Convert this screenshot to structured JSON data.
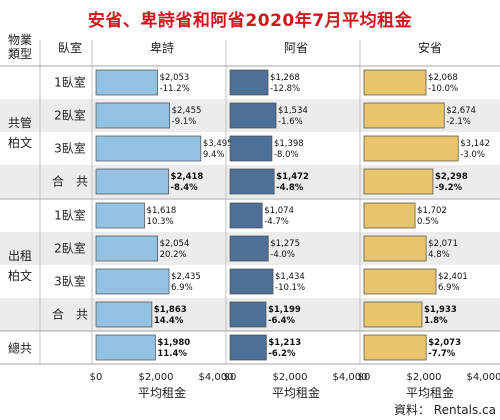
{
  "chart_data": {
    "type": "bar",
    "title": "安省、卑詩省和阿省2020年7月平均租金",
    "category_header": "物業\n類型",
    "room_header": "臥室",
    "groups": [
      {
        "label": "共管\n柏文",
        "rows": [
          "1臥室",
          "2臥室",
          "3臥室",
          "合　共"
        ]
      },
      {
        "label": "出租\n柏文",
        "rows": [
          "1臥室",
          "2臥室",
          "3臥室",
          "合　共"
        ]
      },
      {
        "label": "總共",
        "rows": [
          ""
        ]
      }
    ],
    "series": [
      {
        "name": "卑詩",
        "color": "#93c2e2",
        "values": [
          2053,
          2455,
          3495,
          2418,
          1618,
          2054,
          2435,
          1863,
          1980
        ],
        "value_labels": [
          "$2,053",
          "$2,455",
          "$3,495",
          "$2,418",
          "$1,618",
          "$2,054",
          "$2,435",
          "$1,863",
          "$1,980"
        ],
        "changes": [
          "-11.2%",
          "-9.1%",
          "9.4%",
          "-8.4%",
          "10.3%",
          "20.2%",
          "6.9%",
          "14.4%",
          "11.4%"
        ]
      },
      {
        "name": "阿省",
        "color": "#4e6f98",
        "values": [
          1268,
          1534,
          1398,
          1472,
          1074,
          1275,
          1434,
          1199,
          1213
        ],
        "value_labels": [
          "$1,268",
          "$1,534",
          "$1,398",
          "$1,472",
          "$1,074",
          "$1,275",
          "$1,434",
          "$1,199",
          "$1,213"
        ],
        "changes": [
          "-12.8%",
          "-1.6%",
          "-8.0%",
          "-4.8%",
          "-4.7%",
          "-4.0%",
          "-10.1%",
          "-6.4%",
          "-6.2%"
        ]
      },
      {
        "name": "安省",
        "color": "#e8c46c",
        "values": [
          2068,
          2674,
          3142,
          2298,
          1702,
          2071,
          2401,
          1933,
          2073
        ],
        "value_labels": [
          "$2,068",
          "$2,674",
          "$3,142",
          "$2,298",
          "$1,702",
          "$2,071",
          "$2,401",
          "$1,933",
          "$2,073"
        ],
        "changes": [
          "-10.0%",
          "-2.1%",
          "-3.0%",
          "-9.2%",
          "0.5%",
          "4.8%",
          "6.9%",
          "1.8%",
          "-7.7%"
        ]
      }
    ],
    "bold_rows": [
      3,
      7,
      8
    ],
    "x_ticks": [
      "$0",
      "$2,000",
      "$4,000"
    ],
    "xlim": [
      0,
      4000
    ],
    "xlabel": "平均租金",
    "source": "資料：  Rentals.ca"
  }
}
